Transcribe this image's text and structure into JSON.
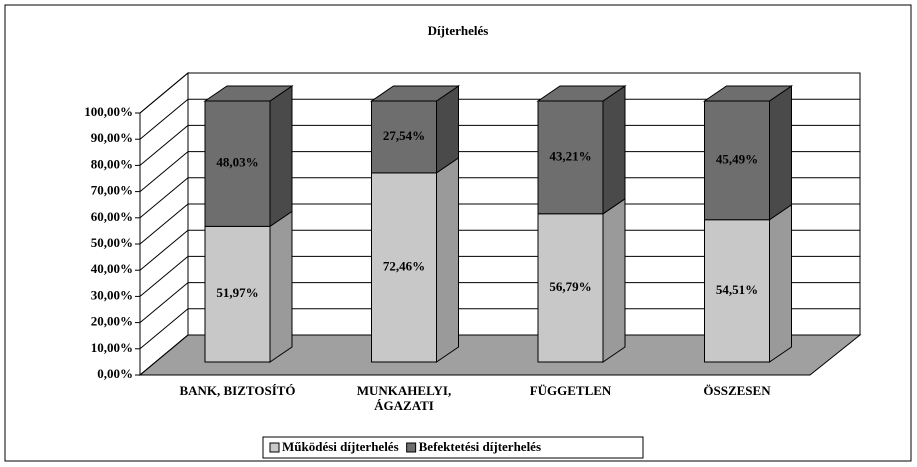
{
  "chart_data": {
    "type": "bar3d_stacked",
    "title": "Díjterhelés",
    "categories": [
      "BANK, BIZTOSÍTÓ",
      "MUNKAHELYI,\nÁGAZATI",
      "FÜGGETLEN",
      "ÖSSZESEN"
    ],
    "series": [
      {
        "name": "Működési díjterhelés",
        "color": "#c8c8c8",
        "values": [
          51.97,
          72.46,
          56.79,
          54.51
        ],
        "value_labels": [
          "51,97%",
          "72,46%",
          "56,79%",
          "54,51%"
        ]
      },
      {
        "name": "Befektetési díjterhelés",
        "color": "#6e6e6e",
        "values": [
          48.03,
          27.54,
          43.21,
          45.49
        ],
        "value_labels": [
          "48,03%",
          "27,54%",
          "43,21%",
          "45,49%"
        ]
      }
    ],
    "ylim": [
      0,
      100
    ],
    "yticks": [
      {
        "value": 0,
        "label": "0,00%"
      },
      {
        "value": 10,
        "label": "10,00%"
      },
      {
        "value": 20,
        "label": "20,00%"
      },
      {
        "value": 30,
        "label": "30,00%"
      },
      {
        "value": 40,
        "label": "40,00%"
      },
      {
        "value": 50,
        "label": "50,00%"
      },
      {
        "value": 60,
        "label": "60,00%"
      },
      {
        "value": 70,
        "label": "70,00%"
      },
      {
        "value": 80,
        "label": "80,00%"
      },
      {
        "value": 90,
        "label": "90,00%"
      },
      {
        "value": 100,
        "label": "100,00%"
      }
    ],
    "grid": true,
    "legend": "bottom"
  }
}
